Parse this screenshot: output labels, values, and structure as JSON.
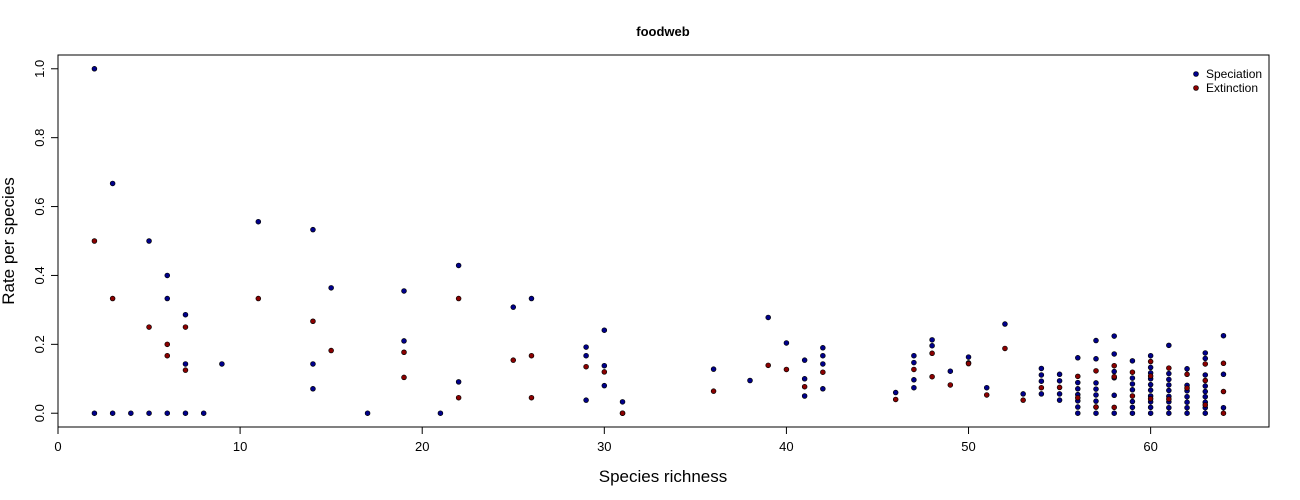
{
  "chart_data": {
    "type": "scatter",
    "title": "foodweb",
    "xlabel": "Species richness",
    "ylabel": "Rate per species",
    "xlim": [
      0,
      66.5
    ],
    "ylim": [
      -0.04,
      1.04
    ],
    "x_ticks": [
      "0",
      "10",
      "20",
      "30",
      "40",
      "50",
      "60"
    ],
    "y_ticks": [
      "0.0",
      "0.2",
      "0.4",
      "0.6",
      "0.8",
      "1.0"
    ],
    "grid": false,
    "legend_position": "top-right",
    "series": [
      {
        "name": "Speciation",
        "color": "#00008b",
        "points": [
          [
            2,
            1.0
          ],
          [
            2,
            0.0
          ],
          [
            3,
            0.667
          ],
          [
            3,
            0.0
          ],
          [
            4,
            0.0
          ],
          [
            5,
            0.5
          ],
          [
            5,
            0.0
          ],
          [
            6,
            0.4
          ],
          [
            6,
            0.333
          ],
          [
            6,
            0.0
          ],
          [
            7,
            0.286
          ],
          [
            7,
            0.143
          ],
          [
            7,
            0.0
          ],
          [
            8,
            0.0
          ],
          [
            9,
            0.143
          ],
          [
            11,
            0.556
          ],
          [
            14,
            0.533
          ],
          [
            14,
            0.143
          ],
          [
            14,
            0.071
          ],
          [
            15,
            0.364
          ],
          [
            17,
            0.0
          ],
          [
            19,
            0.355
          ],
          [
            19,
            0.21
          ],
          [
            21,
            0.0
          ],
          [
            22,
            0.429
          ],
          [
            22,
            0.091
          ],
          [
            25,
            0.308
          ],
          [
            26,
            0.333
          ],
          [
            29,
            0.192
          ],
          [
            29,
            0.167
          ],
          [
            29,
            0.038
          ],
          [
            30,
            0.241
          ],
          [
            30,
            0.138
          ],
          [
            30,
            0.08
          ],
          [
            31,
            0.033
          ],
          [
            31,
            0.0
          ],
          [
            36,
            0.128
          ],
          [
            38,
            0.095
          ],
          [
            39,
            0.278
          ],
          [
            40,
            0.204
          ],
          [
            41,
            0.154
          ],
          [
            41,
            0.1
          ],
          [
            41,
            0.05
          ],
          [
            42,
            0.19
          ],
          [
            42,
            0.167
          ],
          [
            42,
            0.143
          ],
          [
            42,
            0.071
          ],
          [
            46,
            0.06
          ],
          [
            47,
            0.167
          ],
          [
            47,
            0.147
          ],
          [
            47,
            0.097
          ],
          [
            47,
            0.074
          ],
          [
            48,
            0.213
          ],
          [
            48,
            0.196
          ],
          [
            49,
            0.122
          ],
          [
            50,
            0.163
          ],
          [
            50,
            0.146
          ],
          [
            51,
            0.074
          ],
          [
            52,
            0.259
          ],
          [
            53,
            0.056
          ],
          [
            54,
            0.13
          ],
          [
            54,
            0.111
          ],
          [
            54,
            0.093
          ],
          [
            54,
            0.056
          ],
          [
            55,
            0.113
          ],
          [
            55,
            0.094
          ],
          [
            55,
            0.056
          ],
          [
            55,
            0.038
          ],
          [
            56,
            0.161
          ],
          [
            56,
            0.089
          ],
          [
            56,
            0.071
          ],
          [
            56,
            0.054
          ],
          [
            56,
            0.036
          ],
          [
            56,
            0.018
          ],
          [
            56,
            0.0
          ],
          [
            57,
            0.211
          ],
          [
            57,
            0.158
          ],
          [
            57,
            0.088
          ],
          [
            57,
            0.07
          ],
          [
            57,
            0.053
          ],
          [
            57,
            0.035
          ],
          [
            57,
            0.018
          ],
          [
            57,
            0.0
          ],
          [
            58,
            0.224
          ],
          [
            58,
            0.172
          ],
          [
            58,
            0.121
          ],
          [
            58,
            0.103
          ],
          [
            58,
            0.052
          ],
          [
            58,
            0.0
          ],
          [
            59,
            0.152
          ],
          [
            59,
            0.102
          ],
          [
            59,
            0.085
          ],
          [
            59,
            0.068
          ],
          [
            59,
            0.034
          ],
          [
            59,
            0.017
          ],
          [
            59,
            0.0
          ],
          [
            60,
            0.167
          ],
          [
            60,
            0.133
          ],
          [
            60,
            0.117
          ],
          [
            60,
            0.1
          ],
          [
            60,
            0.083
          ],
          [
            60,
            0.067
          ],
          [
            60,
            0.05
          ],
          [
            60,
            0.033
          ],
          [
            60,
            0.017
          ],
          [
            60,
            0.0
          ],
          [
            61,
            0.197
          ],
          [
            61,
            0.115
          ],
          [
            61,
            0.098
          ],
          [
            61,
            0.082
          ],
          [
            61,
            0.066
          ],
          [
            61,
            0.049
          ],
          [
            61,
            0.033
          ],
          [
            61,
            0.016
          ],
          [
            61,
            0.0
          ],
          [
            62,
            0.129
          ],
          [
            62,
            0.081
          ],
          [
            62,
            0.065
          ],
          [
            62,
            0.048
          ],
          [
            62,
            0.032
          ],
          [
            62,
            0.016
          ],
          [
            62,
            0.0
          ],
          [
            63,
            0.175
          ],
          [
            63,
            0.159
          ],
          [
            63,
            0.111
          ],
          [
            63,
            0.079
          ],
          [
            63,
            0.063
          ],
          [
            63,
            0.048
          ],
          [
            63,
            0.032
          ],
          [
            63,
            0.016
          ],
          [
            63,
            0.0
          ],
          [
            64,
            0.225
          ],
          [
            64,
            0.113
          ],
          [
            64,
            0.016
          ]
        ]
      },
      {
        "name": "Extinction",
        "color": "#8b0000",
        "points": [
          [
            2,
            0.5
          ],
          [
            3,
            0.333
          ],
          [
            5,
            0.25
          ],
          [
            6,
            0.2
          ],
          [
            6,
            0.167
          ],
          [
            7,
            0.25
          ],
          [
            7,
            0.125
          ],
          [
            11,
            0.333
          ],
          [
            14,
            0.267
          ],
          [
            15,
            0.182
          ],
          [
            19,
            0.177
          ],
          [
            19,
            0.104
          ],
          [
            22,
            0.333
          ],
          [
            22,
            0.045
          ],
          [
            25,
            0.154
          ],
          [
            26,
            0.167
          ],
          [
            26,
            0.045
          ],
          [
            29,
            0.135
          ],
          [
            30,
            0.12
          ],
          [
            31,
            0.0
          ],
          [
            36,
            0.064
          ],
          [
            39,
            0.139
          ],
          [
            40,
            0.127
          ],
          [
            41,
            0.077
          ],
          [
            42,
            0.119
          ],
          [
            46,
            0.04
          ],
          [
            47,
            0.127
          ],
          [
            48,
            0.174
          ],
          [
            48,
            0.106
          ],
          [
            49,
            0.082
          ],
          [
            50,
            0.144
          ],
          [
            51,
            0.053
          ],
          [
            52,
            0.188
          ],
          [
            53,
            0.038
          ],
          [
            54,
            0.074
          ],
          [
            55,
            0.075
          ],
          [
            56,
            0.107
          ],
          [
            56,
            0.045
          ],
          [
            57,
            0.123
          ],
          [
            57,
            0.018
          ],
          [
            58,
            0.138
          ],
          [
            58,
            0.106
          ],
          [
            58,
            0.017
          ],
          [
            59,
            0.119
          ],
          [
            59,
            0.05
          ],
          [
            60,
            0.15
          ],
          [
            60,
            0.108
          ],
          [
            60,
            0.042
          ],
          [
            61,
            0.131
          ],
          [
            61,
            0.041
          ],
          [
            62,
            0.113
          ],
          [
            62,
            0.073
          ],
          [
            63,
            0.143
          ],
          [
            63,
            0.095
          ],
          [
            63,
            0.024
          ],
          [
            64,
            0.145
          ],
          [
            64,
            0.063
          ],
          [
            64,
            0.0
          ]
        ]
      }
    ]
  }
}
